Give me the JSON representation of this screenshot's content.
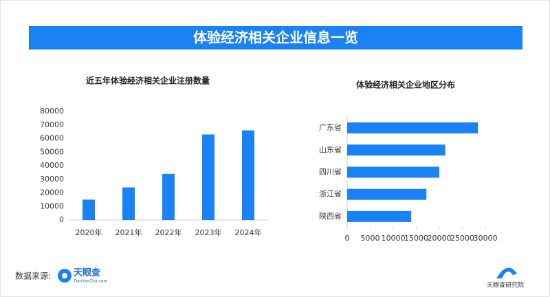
{
  "header": {
    "title": "体验经济相关企业信息一览"
  },
  "chart_data": [
    {
      "type": "bar",
      "orientation": "vertical",
      "title": "近五年体验经济相关企业注册数量",
      "categories": [
        "2020年",
        "2021年",
        "2022年",
        "2023年",
        "2024年"
      ],
      "values": [
        15000,
        24000,
        34000,
        63000,
        66000
      ],
      "color": "#1a82f5",
      "ylim": [
        0,
        80000
      ],
      "yticks": [
        0,
        10000,
        20000,
        30000,
        40000,
        50000,
        60000,
        70000,
        80000
      ]
    },
    {
      "type": "bar",
      "orientation": "horizontal",
      "title": "体验经济相关企业地区分布",
      "categories": [
        "广东省",
        "山东省",
        "四川省",
        "浙江省",
        "陕西省"
      ],
      "values": [
        28400,
        21300,
        20000,
        17200,
        13900
      ],
      "color": "#1a82f5",
      "xlim": [
        0,
        30000
      ],
      "xticks": [
        0,
        5000,
        10000,
        15000,
        20000,
        25000,
        30000
      ]
    }
  ],
  "footer": {
    "source_label": "数据来源:",
    "logo_text": "天眼查",
    "logo_url": "TianYanCha.com",
    "right_logo": "天眼查研究院"
  }
}
